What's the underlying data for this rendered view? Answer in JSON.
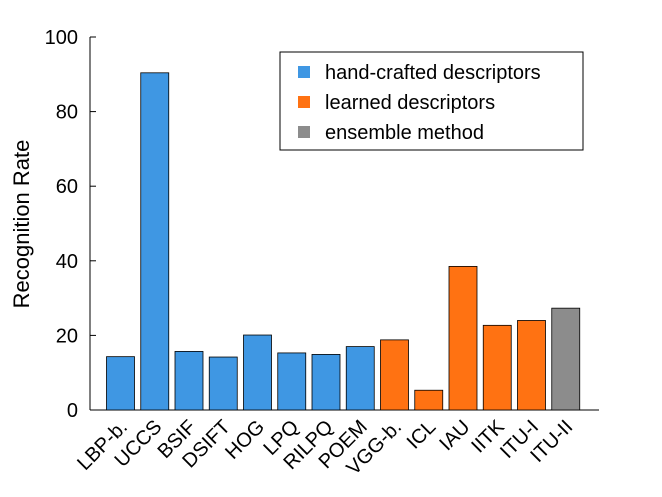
{
  "chart_data": {
    "type": "bar",
    "title": "",
    "xlabel": "",
    "ylabel": "Recognition Rate",
    "ylim": [
      0,
      100
    ],
    "yticks": [
      0,
      20,
      40,
      60,
      80,
      100
    ],
    "grid": false,
    "legend_position": "top-right",
    "categories": [
      "LBP-b.",
      "UCCS",
      "BSIF",
      "DSIFT",
      "HOG",
      "LPQ",
      "RILPQ",
      "POEM",
      "VGG-b.",
      "ICL",
      "IAU",
      "IITK",
      "ITU-I",
      "ITU-II"
    ],
    "values": [
      14.3,
      90.4,
      15.7,
      14.2,
      20.1,
      15.3,
      14.9,
      17.0,
      18.8,
      5.3,
      38.5,
      22.7,
      24.0,
      27.3
    ],
    "groups": [
      "hand-crafted",
      "hand-crafted",
      "hand-crafted",
      "hand-crafted",
      "hand-crafted",
      "hand-crafted",
      "hand-crafted",
      "hand-crafted",
      "learned",
      "learned",
      "learned",
      "learned",
      "learned",
      "ensemble"
    ],
    "legend": [
      {
        "key": "hand-crafted",
        "label": "hand-crafted descriptors",
        "color": "#3f97e3"
      },
      {
        "key": "learned",
        "label": "learned descriptors",
        "color": "#ff7212"
      },
      {
        "key": "ensemble",
        "label": "ensemble method",
        "color": "#8c8c8c"
      }
    ]
  }
}
